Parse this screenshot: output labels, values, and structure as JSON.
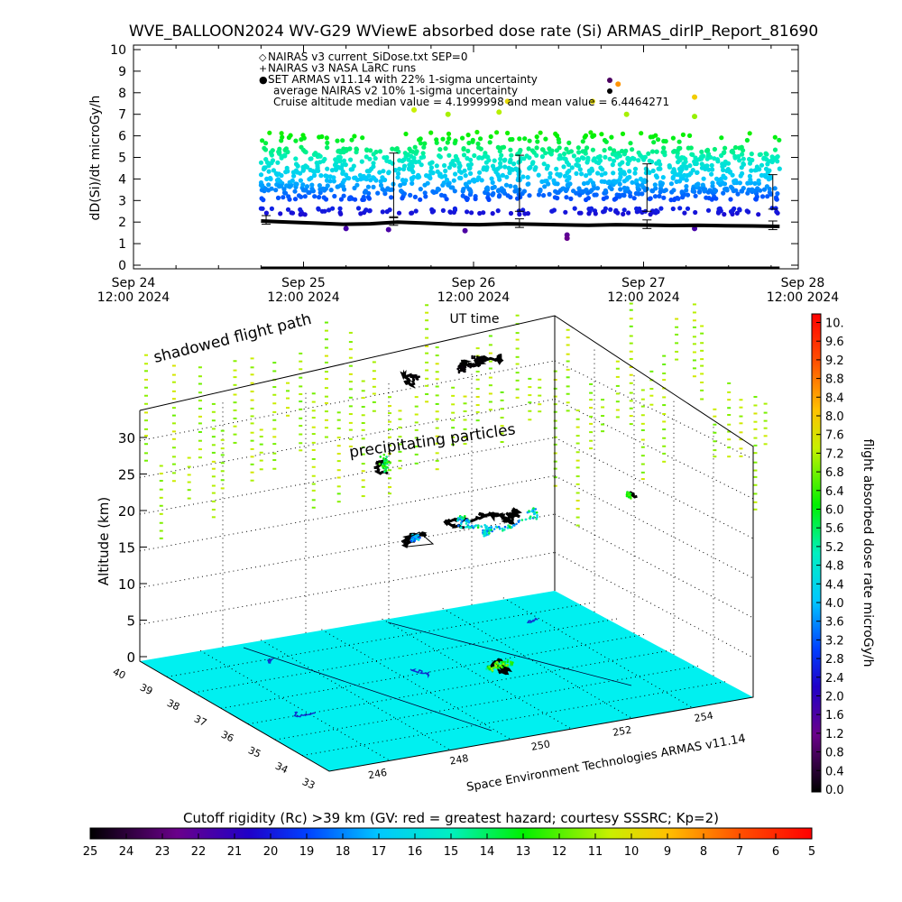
{
  "title": "WVE_BALLOON2024 WV-G29 WViewE absorbed dose rate (Si) ARMAS_dirIP_Report_81690",
  "chart_data": [
    {
      "type": "scatter",
      "title": "WVE_BALLOON2024 WV-G29 WViewE absorbed dose rate (Si) ARMAS_dirIP_Report_81690",
      "ylabel": "dD(Si)/dt microGy/h",
      "xlabel": "UT time",
      "ylim": [
        0,
        10
      ],
      "yticks": [
        "0",
        "1",
        "2",
        "3",
        "4",
        "5",
        "6",
        "7",
        "8",
        "9",
        "10"
      ],
      "xticks": [
        {
          "line1": "Sep 24",
          "line2": "12:00 2024",
          "day": 0
        },
        {
          "line1": "Sep 25",
          "line2": "12:00 2024",
          "day": 1
        },
        {
          "line1": "Sep 26",
          "line2": "12:00 2024",
          "day": 2
        },
        {
          "line1": "Sep 27",
          "line2": "12:00 2024",
          "day": 3
        },
        {
          "line1": "Sep 28",
          "line2": "12:00 2024",
          "day": 4
        }
      ],
      "legend": [
        {
          "symbol": "◇",
          "label": "NAIRAS v3 current_SiDose.txt SEP=0"
        },
        {
          "symbol": "+",
          "label": "NAIRAS v3 NASA LaRC runs"
        },
        {
          "symbol": "●",
          "label": "SET ARMAS v11.14 with 22% 1-sigma uncertainty",
          "color": "#0000ff"
        },
        {
          "symbol": "",
          "label": "average NAIRAS v2 10% 1-sigma uncertainty"
        },
        {
          "symbol": "",
          "label": "Cruise altitude median value = 4.1999998 and mean value = 6.4464271"
        }
      ],
      "nairas_line": {
        "day_start": 0.75,
        "day_end": 3.8,
        "values": [
          2.05,
          2.0,
          1.95,
          1.9,
          1.92,
          2.0,
          1.95,
          1.9,
          1.88,
          1.92,
          1.9,
          1.87,
          1.85,
          1.88,
          1.86,
          1.84,
          1.85,
          1.83,
          1.82,
          1.8
        ]
      },
      "nairas_errorbars": [
        {
          "day": 0.78,
          "value": 2.1,
          "err": 0.2
        },
        {
          "day": 1.53,
          "value": 2.05,
          "err": 0.2
        },
        {
          "day": 2.27,
          "value": 1.95,
          "err": 0.2
        },
        {
          "day": 3.02,
          "value": 1.9,
          "err": 0.2
        },
        {
          "day": 3.76,
          "value": 1.85,
          "err": 0.2
        }
      ],
      "armas_errorbars": [
        {
          "day": 1.53,
          "value": 3.7,
          "err": 1.5
        },
        {
          "day": 2.27,
          "value": 3.8,
          "err": 1.3
        },
        {
          "day": 3.02,
          "value": 3.6,
          "err": 1.1
        },
        {
          "day": 3.76,
          "value": 3.4,
          "err": 0.8
        }
      ],
      "armas_bands": [
        2.5,
        3.3,
        3.7,
        4.2,
        4.7,
        5.2,
        5.9
      ],
      "armas_day_range": [
        0.75,
        3.8
      ],
      "armas_outliers": [
        {
          "day": 1.25,
          "value": 1.7
        },
        {
          "day": 1.5,
          "value": 1.65
        },
        {
          "day": 1.95,
          "value": 1.6
        },
        {
          "day": 2.55,
          "value": 1.4
        },
        {
          "day": 2.55,
          "value": 1.25
        },
        {
          "day": 3.3,
          "value": 1.7
        },
        {
          "day": 1.65,
          "value": 7.2
        },
        {
          "day": 1.85,
          "value": 7.0
        },
        {
          "day": 2.15,
          "value": 7.1
        },
        {
          "day": 2.2,
          "value": 7.6
        },
        {
          "day": 2.7,
          "value": 7.6
        },
        {
          "day": 2.9,
          "value": 7.0
        },
        {
          "day": 3.3,
          "value": 7.8
        },
        {
          "day": 3.3,
          "value": 6.9
        },
        {
          "day": 2.85,
          "value": 8.4
        }
      ]
    },
    {
      "type": "scatter3d",
      "zlabel": "Altitude (km)",
      "zticks": [
        "0",
        "5",
        "10",
        "15",
        "20",
        "25",
        "30"
      ],
      "lat_ticks": [
        "40",
        "39",
        "38",
        "37",
        "36",
        "35",
        "34",
        "33"
      ],
      "lon_ticks": [
        "246",
        "248",
        "250",
        "252",
        "254"
      ],
      "annotations": [
        "precipitating particles",
        "shadowed flight path"
      ],
      "footer": "Space Environment Technologies ARMAS v11.14",
      "colorbar": {
        "label": "flight absorbed dose rate microGy/h",
        "ticks": [
          "0.0",
          "0.4",
          "0.8",
          "1.2",
          "1.6",
          "2.0",
          "2.4",
          "2.8",
          "3.2",
          "3.6",
          "4.0",
          "4.4",
          "4.8",
          "5.2",
          "5.6",
          "6.0",
          "6.4",
          "6.8",
          "7.2",
          "7.6",
          "8.0",
          "8.4",
          "8.8",
          "9.2",
          "9.6",
          "10."
        ],
        "range": [
          0,
          10
        ]
      }
    },
    {
      "type": "colorbar",
      "title": "Cutoff rigidity (Rc) >39 km (GV: red = greatest hazard; courtesy SSSRC; Kp=2)",
      "ticks": [
        "25",
        "24",
        "23",
        "22",
        "21",
        "20",
        "19",
        "18",
        "17",
        "16",
        "15",
        "14",
        "13",
        "12",
        "11",
        "10",
        "9",
        "8",
        "7",
        "6",
        "5"
      ],
      "range": [
        25,
        5
      ]
    }
  ],
  "colors": {
    "floor": "#00f0f0",
    "nairas": "#000000",
    "armas_low": "#0000ff"
  }
}
